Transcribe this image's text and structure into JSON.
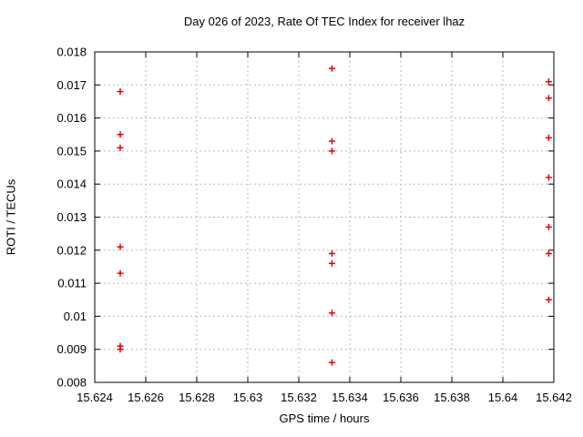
{
  "chart_data": {
    "type": "scatter",
    "title": "Day 026 of 2023, Rate Of TEC Index for receiver lhaz",
    "xlabel": "GPS time / hours",
    "ylabel": "ROTI / TECUs",
    "xlim": [
      15.624,
      15.642
    ],
    "ylim": [
      0.008,
      0.018
    ],
    "grid": true,
    "grid_style": "dotted",
    "legend": "none",
    "background_color": "#ffffff",
    "border_color": "#000000",
    "grid_color": "#b8b8b8",
    "marker": "plus",
    "marker_color": "#ee0000",
    "x_ticks": [
      {
        "value": 15.624,
        "label": "15.624"
      },
      {
        "value": 15.626,
        "label": "15.626"
      },
      {
        "value": 15.628,
        "label": "15.628"
      },
      {
        "value": 15.63,
        "label": "15.63"
      },
      {
        "value": 15.632,
        "label": "15.632"
      },
      {
        "value": 15.634,
        "label": "15.634"
      },
      {
        "value": 15.636,
        "label": "15.636"
      },
      {
        "value": 15.638,
        "label": "15.638"
      },
      {
        "value": 15.64,
        "label": "15.64"
      },
      {
        "value": 15.642,
        "label": "15.642"
      }
    ],
    "y_ticks": [
      {
        "value": 0.008,
        "label": "0.008"
      },
      {
        "value": 0.009,
        "label": "0.009"
      },
      {
        "value": 0.01,
        "label": "0.01"
      },
      {
        "value": 0.011,
        "label": "0.011"
      },
      {
        "value": 0.012,
        "label": "0.012"
      },
      {
        "value": 0.013,
        "label": "0.013"
      },
      {
        "value": 0.014,
        "label": "0.014"
      },
      {
        "value": 0.015,
        "label": "0.015"
      },
      {
        "value": 0.016,
        "label": "0.016"
      },
      {
        "value": 0.017,
        "label": "0.017"
      },
      {
        "value": 0.018,
        "label": "0.018"
      }
    ],
    "series": [
      {
        "name": "ROTI",
        "points": [
          [
            15.625,
            0.0168
          ],
          [
            15.625,
            0.0155
          ],
          [
            15.625,
            0.0151
          ],
          [
            15.625,
            0.0121
          ],
          [
            15.625,
            0.0113
          ],
          [
            15.625,
            0.0091
          ],
          [
            15.625,
            0.009
          ],
          [
            15.6333,
            0.0175
          ],
          [
            15.6333,
            0.0153
          ],
          [
            15.6333,
            0.015
          ],
          [
            15.6333,
            0.0119
          ],
          [
            15.6333,
            0.0116
          ],
          [
            15.6333,
            0.0101
          ],
          [
            15.6333,
            0.0086
          ],
          [
            15.6418,
            0.0171
          ],
          [
            15.6418,
            0.0166
          ],
          [
            15.6418,
            0.0154
          ],
          [
            15.6418,
            0.0142
          ],
          [
            15.6418,
            0.0127
          ],
          [
            15.6418,
            0.0119
          ],
          [
            15.6418,
            0.0105
          ]
        ]
      }
    ]
  }
}
